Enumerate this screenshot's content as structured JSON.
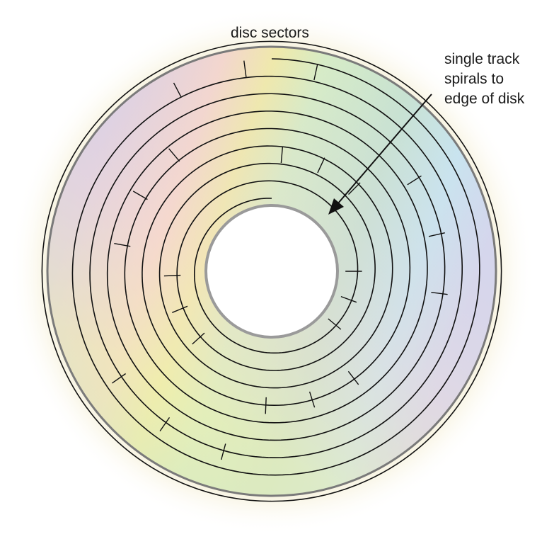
{
  "labels": {
    "disc_sectors": "disc sectors",
    "track_lines": [
      "single track",
      "spirals to",
      "edge of disk"
    ]
  },
  "colors": {
    "outline": "#111111",
    "rim": "#7a7a7a",
    "hub_rim": "#9a9a9a",
    "iridescent": [
      "#f4c9c0",
      "#f2e6a0",
      "#cfe9c2",
      "#c6e4ee",
      "#cdd3ee",
      "#d9c8e6"
    ]
  },
  "disc": {
    "track_turns": 8,
    "sector_dividers": 24
  }
}
